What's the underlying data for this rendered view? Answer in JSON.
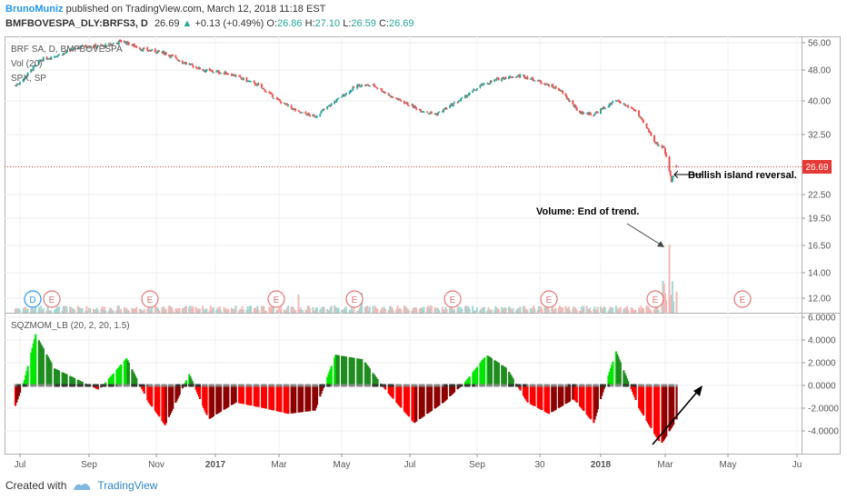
{
  "header": {
    "author": "BrunoMuniz",
    "published": "published on TradingView.com, March 12, 2018 11:18 EST",
    "symbol": "BMFBOVESPA_DLY:BRFS3, D",
    "last": "26.69",
    "change": "+0.13 (+0.49%)",
    "o_label": "O:",
    "o_val": "26.86",
    "h_label": "H:",
    "h_val": "27.10",
    "l_label": "L:",
    "l_val": "26.59",
    "c_label": "C:",
    "c_val": "26.69"
  },
  "legend": {
    "line1": "BRF SA, D, BMFBOVESPA",
    "line2": "Vol (20)",
    "line3": "SPX, SP",
    "indicator": "SQZMOM_LB (20, 2, 20, 1.5)"
  },
  "annotations": {
    "island": "Bullish island reversal.",
    "volume": "Volume: End of trend."
  },
  "price_tag": "26.69",
  "events": [
    "D",
    "E",
    "E",
    "E",
    "E",
    "E",
    "E",
    "E",
    "E"
  ],
  "colors": {
    "up_candle": "#26a69a",
    "down_candle": "#ef5350",
    "mom_up_strong": "#00e600",
    "mom_up_weak": "#1e8c1e",
    "mom_down_strong": "#ff0000",
    "mom_down_weak": "#8c0000",
    "price_line": "#e53935",
    "event_red": "#e57373",
    "event_blue": "#2196f3"
  },
  "footer": {
    "created": "Created with",
    "brand": "TradingView"
  },
  "chart_data": [
    {
      "type": "candlestick",
      "title": "BRF SA, D, BMFBOVESPA",
      "x_ticks": [
        "Jul",
        "Sep",
        "Nov",
        "2017",
        "Mar",
        "May",
        "Jul",
        "Sep",
        "30",
        "2018",
        "Mar",
        "May",
        "Ju"
      ],
      "y_ticks": [
        "56.00",
        "48.00",
        "40.00",
        "32.50",
        "26.69",
        "22.50",
        "19.50",
        "16.50",
        "14.00",
        "12.00"
      ],
      "y_scale": "log",
      "close_path": [
        [
          "2016-06-27",
          44
        ],
        [
          "2016-07-05",
          46
        ],
        [
          "2016-07-20",
          51
        ],
        [
          "2016-08-10",
          53
        ],
        [
          "2016-08-25",
          55
        ],
        [
          "2016-09-15",
          55
        ],
        [
          "2016-10-01",
          56.5
        ],
        [
          "2016-10-20",
          54
        ],
        [
          "2016-11-10",
          53
        ],
        [
          "2016-12-01",
          50
        ],
        [
          "2016-12-20",
          48
        ],
        [
          "2017-01-15",
          47
        ],
        [
          "2017-02-10",
          44
        ],
        [
          "2017-03-01",
          40
        ],
        [
          "2017-03-20",
          37.5
        ],
        [
          "2017-04-05",
          36.5
        ],
        [
          "2017-04-25",
          40
        ],
        [
          "2017-05-15",
          44
        ],
        [
          "2017-05-30",
          44
        ],
        [
          "2017-06-15",
          41
        ],
        [
          "2017-07-10",
          38
        ],
        [
          "2017-07-25",
          37
        ],
        [
          "2017-08-15",
          40
        ],
        [
          "2017-09-05",
          44
        ],
        [
          "2017-09-25",
          46
        ],
        [
          "2017-10-15",
          46.5
        ],
        [
          "2017-11-01",
          45
        ],
        [
          "2017-11-20",
          43
        ],
        [
          "2017-12-10",
          37.5
        ],
        [
          "2017-12-25",
          37
        ],
        [
          "2018-01-15",
          40
        ],
        [
          "2018-02-01",
          38
        ],
        [
          "2018-02-20",
          31
        ],
        [
          "2018-02-28",
          30
        ],
        [
          "2018-03-07",
          24.5
        ],
        [
          "2018-03-12",
          26.69
        ]
      ]
    },
    {
      "type": "bar",
      "title": "SQZMOM_LB (20, 2, 20, 1.5)",
      "y_ticks": [
        "6.0000",
        "4.0000",
        "2.0000",
        "0.0000",
        "-2.0000",
        "-4.0000"
      ],
      "momentum_path": [
        [
          "2016-06-27",
          -1.8
        ],
        [
          "2016-07-05",
          0.5
        ],
        [
          "2016-07-15",
          4.5
        ],
        [
          "2016-08-01",
          1.5
        ],
        [
          "2016-08-20",
          0.6
        ],
        [
          "2016-09-10",
          -0.4
        ],
        [
          "2016-10-05",
          2.4
        ],
        [
          "2016-10-25",
          -1.5
        ],
        [
          "2016-11-10",
          -3.5
        ],
        [
          "2016-12-05",
          1.0
        ],
        [
          "2016-12-25",
          -3.0
        ],
        [
          "2017-01-20",
          -1.5
        ],
        [
          "2017-02-15",
          -2.0
        ],
        [
          "2017-03-10",
          -2.5
        ],
        [
          "2017-04-05",
          -2.2
        ],
        [
          "2017-04-25",
          2.7
        ],
        [
          "2017-05-20",
          2.3
        ],
        [
          "2017-06-10",
          -0.5
        ],
        [
          "2017-07-05",
          -3.3
        ],
        [
          "2017-08-01",
          -1.5
        ],
        [
          "2017-08-20",
          0.2
        ],
        [
          "2017-09-10",
          2.7
        ],
        [
          "2017-09-30",
          1.5
        ],
        [
          "2017-10-20",
          -1.5
        ],
        [
          "2017-11-10",
          -2.5
        ],
        [
          "2017-12-05",
          -1.2
        ],
        [
          "2017-12-25",
          -3.3
        ],
        [
          "2018-01-15",
          3.0
        ],
        [
          "2018-02-05",
          -2.0
        ],
        [
          "2018-02-25",
          -5.2
        ],
        [
          "2018-03-12",
          -3.0
        ]
      ]
    }
  ]
}
